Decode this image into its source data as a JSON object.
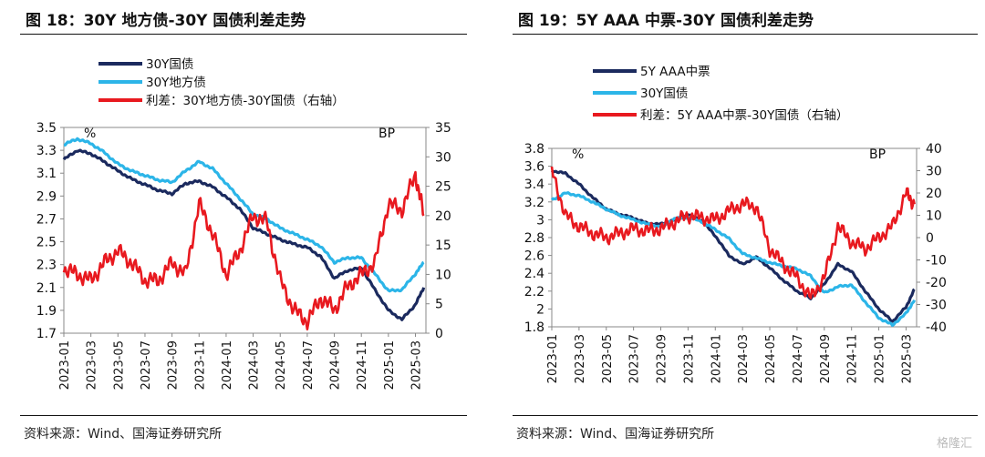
{
  "chart_data": [
    {
      "type": "line",
      "title": "图 18：30Y 地方债-30Y 国债利差走势",
      "y_left_unit": "%",
      "y_right_unit": "BP",
      "ylim_left": [
        1.7,
        3.5
      ],
      "ylim_right": [
        0,
        35
      ],
      "yticks_left": [
        "3.5",
        "3.3",
        "3.1",
        "2.9",
        "2.7",
        "2.5",
        "2.3",
        "2.1",
        "1.9",
        "1.7"
      ],
      "yticks_right": [
        "35",
        "30",
        "25",
        "20",
        "15",
        "10",
        "5",
        "0"
      ],
      "x_ticks": [
        "2023-01",
        "2023-03",
        "2023-05",
        "2023-07",
        "2023-09",
        "2023-11",
        "2024-01",
        "2024-03",
        "2024-05",
        "2024-07",
        "2024-09",
        "2024-11",
        "2025-01",
        "2025-03"
      ],
      "legend": [
        "30Y国债",
        "30Y地方债",
        "利差：30Y地方债-30Y国债（右轴）"
      ],
      "series": [
        {
          "name": "30Y国债",
          "axis": "left",
          "color": "#1b2a5e",
          "x": [
            "2023-01",
            "2023-02",
            "2023-03",
            "2023-04",
            "2023-05",
            "2023-06",
            "2023-07",
            "2023-08",
            "2023-09",
            "2023-10",
            "2023-11",
            "2023-12",
            "2024-01",
            "2024-02",
            "2024-03",
            "2024-04",
            "2024-05",
            "2024-06",
            "2024-07",
            "2024-08",
            "2024-09",
            "2024-10",
            "2024-11",
            "2024-12",
            "2025-01",
            "2025-02",
            "2025-03",
            "2025-03-20"
          ],
          "values": [
            3.22,
            3.3,
            3.27,
            3.2,
            3.12,
            3.05,
            3.0,
            2.95,
            2.92,
            3.01,
            3.03,
            2.98,
            2.89,
            2.79,
            2.62,
            2.57,
            2.52,
            2.48,
            2.45,
            2.37,
            2.18,
            2.25,
            2.27,
            2.08,
            1.9,
            1.82,
            1.95,
            2.1
          ]
        },
        {
          "name": "30Y地方债",
          "axis": "left",
          "color": "#2cb5e8",
          "x": [
            "2023-01",
            "2023-02",
            "2023-03",
            "2023-04",
            "2023-05",
            "2023-06",
            "2023-07",
            "2023-08",
            "2023-09",
            "2023-10",
            "2023-11",
            "2023-12",
            "2024-01",
            "2024-02",
            "2024-03",
            "2024-04",
            "2024-05",
            "2024-06",
            "2024-07",
            "2024-08",
            "2024-09",
            "2024-10",
            "2024-11",
            "2024-12",
            "2025-01",
            "2025-02",
            "2025-03",
            "2025-03-20"
          ],
          "values": [
            3.35,
            3.4,
            3.36,
            3.28,
            3.18,
            3.12,
            3.08,
            3.04,
            3.02,
            3.12,
            3.2,
            3.14,
            3.01,
            2.88,
            2.74,
            2.7,
            2.62,
            2.57,
            2.52,
            2.46,
            2.32,
            2.36,
            2.36,
            2.22,
            2.07,
            2.08,
            2.22,
            2.32
          ]
        },
        {
          "name": "利差：30Y地方债-30Y国债（右轴）",
          "axis": "right",
          "color": "#e8191f",
          "x": [
            "2023-01",
            "2023-02",
            "2023-03",
            "2023-04",
            "2023-05",
            "2023-06",
            "2023-07",
            "2023-08",
            "2023-09",
            "2023-10",
            "2023-11",
            "2023-12",
            "2024-01",
            "2024-02",
            "2024-03",
            "2024-04",
            "2024-05",
            "2024-06",
            "2024-07",
            "2024-08",
            "2024-09",
            "2024-10",
            "2024-11",
            "2024-12",
            "2025-01",
            "2025-02",
            "2025-03",
            "2025-03-20"
          ],
          "values": [
            11,
            10,
            9,
            12,
            14,
            12,
            9,
            9,
            12,
            10,
            22,
            17,
            10,
            14,
            20,
            19,
            9,
            4,
            2,
            6,
            4,
            8,
            10,
            12,
            22,
            21,
            27,
            20
          ]
        }
      ]
    },
    {
      "type": "line",
      "title": "图 19：5Y AAA 中票-30Y 国债利差走势",
      "y_left_unit": "%",
      "y_right_unit": "BP",
      "ylim_left": [
        1.8,
        3.8
      ],
      "ylim_right": [
        -40,
        40
      ],
      "yticks_left": [
        "3.8",
        "3.6",
        "3.4",
        "3.2",
        "3",
        "2.8",
        "2.6",
        "2.4",
        "2.2",
        "2",
        "1.8"
      ],
      "yticks_right": [
        "40",
        "30",
        "20",
        "10",
        "0",
        "-10",
        "-20",
        "-30",
        "-40"
      ],
      "x_ticks": [
        "2023-01",
        "2023-03",
        "2023-05",
        "2023-07",
        "2023-09",
        "2023-11",
        "2024-01",
        "2024-03",
        "2024-05",
        "2024-07",
        "2024-09",
        "2024-11",
        "2025-01",
        "2025-03"
      ],
      "legend": [
        "5Y AAA中票",
        "30Y国债",
        "利差：5Y AAA中票-30Y国债（右轴）"
      ],
      "series": [
        {
          "name": "5Y AAA中票",
          "axis": "left",
          "color": "#1b2a5e",
          "x": [
            "2023-01",
            "2023-02",
            "2023-03",
            "2023-04",
            "2023-05",
            "2023-06",
            "2023-07",
            "2023-08",
            "2023-09",
            "2023-10",
            "2023-11",
            "2023-12",
            "2024-01",
            "2024-02",
            "2024-03",
            "2024-04",
            "2024-05",
            "2024-06",
            "2024-07",
            "2024-08",
            "2024-09",
            "2024-10",
            "2024-11",
            "2024-12",
            "2025-01",
            "2025-02",
            "2025-03",
            "2025-03-20"
          ],
          "values": [
            3.55,
            3.52,
            3.4,
            3.25,
            3.12,
            3.06,
            3.02,
            2.96,
            2.95,
            3.0,
            3.06,
            2.99,
            2.82,
            2.6,
            2.5,
            2.58,
            2.46,
            2.32,
            2.2,
            2.12,
            2.28,
            2.5,
            2.42,
            2.2,
            2.0,
            1.86,
            2.02,
            2.22
          ]
        },
        {
          "name": "30Y国债",
          "axis": "left",
          "color": "#2cb5e8",
          "x": [
            "2023-01",
            "2023-02",
            "2023-03",
            "2023-04",
            "2023-05",
            "2023-06",
            "2023-07",
            "2023-08",
            "2023-09",
            "2023-10",
            "2023-11",
            "2023-12",
            "2024-01",
            "2024-02",
            "2024-03",
            "2024-04",
            "2024-05",
            "2024-06",
            "2024-07",
            "2024-08",
            "2024-09",
            "2024-10",
            "2024-11",
            "2024-12",
            "2025-01",
            "2025-02",
            "2025-03",
            "2025-03-20"
          ],
          "values": [
            3.22,
            3.3,
            3.27,
            3.2,
            3.12,
            3.05,
            3.0,
            2.95,
            2.92,
            3.01,
            3.03,
            2.98,
            2.89,
            2.79,
            2.62,
            2.57,
            2.52,
            2.48,
            2.45,
            2.37,
            2.18,
            2.25,
            2.27,
            2.08,
            1.9,
            1.82,
            1.95,
            2.1
          ]
        },
        {
          "name": "利差：5Y AAA中票-30Y国债（右轴）",
          "axis": "right",
          "color": "#e8191f",
          "x": [
            "2023-01",
            "2023-02",
            "2023-03",
            "2023-04",
            "2023-05",
            "2023-06",
            "2023-07",
            "2023-08",
            "2023-09",
            "2023-10",
            "2023-11",
            "2023-12",
            "2024-01",
            "2024-02",
            "2024-03",
            "2024-04",
            "2024-05",
            "2024-06",
            "2024-07",
            "2024-08",
            "2024-09",
            "2024-10",
            "2024-11",
            "2024-12",
            "2025-01",
            "2025-02",
            "2025-03",
            "2025-03-20"
          ],
          "values": [
            30,
            10,
            5,
            2,
            0,
            2,
            4,
            3,
            4,
            7,
            10,
            9,
            8,
            12,
            15,
            14,
            -5,
            -12,
            -18,
            -27,
            -18,
            5,
            -2,
            -5,
            0,
            5,
            20,
            15
          ]
        }
      ]
    }
  ],
  "footer": {
    "left_source": "资料来源：Wind、国海证券研究所",
    "right_source": "资料来源：Wind、国海证券研究所",
    "watermark": "格隆汇"
  }
}
